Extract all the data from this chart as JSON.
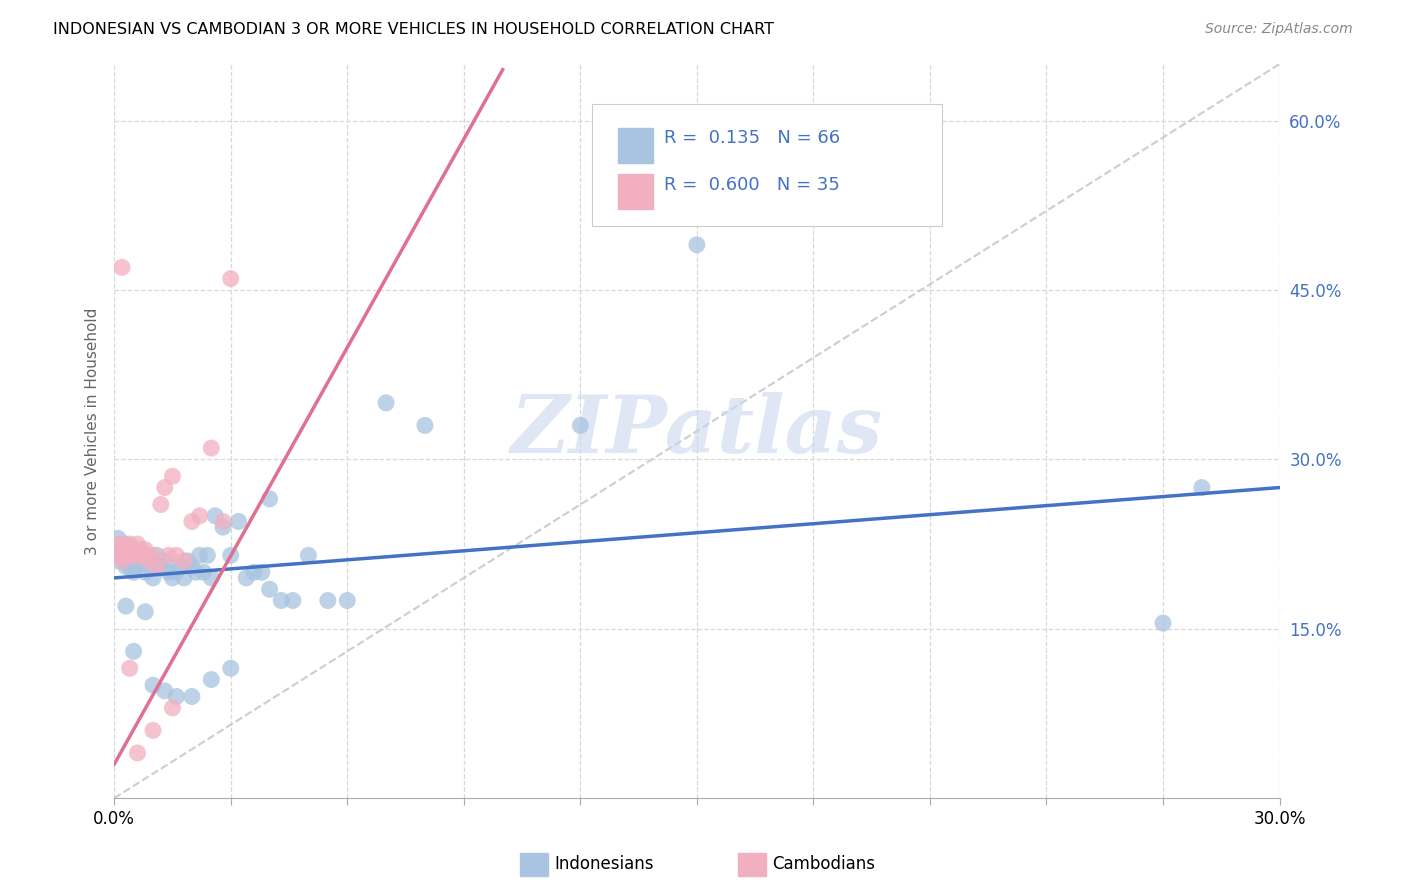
{
  "title": "INDONESIAN VS CAMBODIAN 3 OR MORE VEHICLES IN HOUSEHOLD CORRELATION CHART",
  "source": "Source: ZipAtlas.com",
  "ylabel": "3 or more Vehicles in Household",
  "xlim": [
    0.0,
    0.3
  ],
  "ylim": [
    0.0,
    0.65
  ],
  "xticks": [
    0.0,
    0.03,
    0.06,
    0.09,
    0.12,
    0.15,
    0.18,
    0.21,
    0.24,
    0.27,
    0.3
  ],
  "yticks_right": [
    0.15,
    0.3,
    0.45,
    0.6
  ],
  "ytick_labels_right": [
    "15.0%",
    "30.0%",
    "45.0%",
    "60.0%"
  ],
  "blue_scatter_color": "#a8c4e0",
  "pink_scatter_color": "#f2afc0",
  "blue_line_color": "#4472c4",
  "pink_line_color": "#e07090",
  "ref_line_color": "#c8c8c8",
  "grid_color": "#d8d8d8",
  "legend_text_color": "#4472c4",
  "legend_R_blue": "0.135",
  "legend_N_blue": "66",
  "legend_R_pink": "0.600",
  "legend_N_pink": "35",
  "watermark": "ZIPatlas",
  "blue_line_x0": 0.0,
  "blue_line_y0": 0.195,
  "blue_line_x1": 0.3,
  "blue_line_y1": 0.275,
  "pink_line_x0": 0.0,
  "pink_line_y0": 0.03,
  "pink_line_x1": 0.1,
  "pink_line_y1": 0.645,
  "ref_line_x0": 0.0,
  "ref_line_y0": 0.0,
  "ref_line_x1": 0.3,
  "ref_line_y1": 0.65,
  "indonesians_x": [
    0.001,
    0.001,
    0.002,
    0.002,
    0.003,
    0.003,
    0.003,
    0.004,
    0.004,
    0.004,
    0.005,
    0.005,
    0.005,
    0.006,
    0.006,
    0.007,
    0.007,
    0.008,
    0.008,
    0.009,
    0.01,
    0.01,
    0.011,
    0.012,
    0.013,
    0.014,
    0.015,
    0.016,
    0.017,
    0.018,
    0.019,
    0.02,
    0.021,
    0.022,
    0.023,
    0.024,
    0.025,
    0.026,
    0.028,
    0.03,
    0.032,
    0.034,
    0.036,
    0.038,
    0.04,
    0.043,
    0.046,
    0.05,
    0.055,
    0.06,
    0.003,
    0.005,
    0.008,
    0.01,
    0.013,
    0.016,
    0.02,
    0.025,
    0.03,
    0.04,
    0.07,
    0.08,
    0.12,
    0.15,
    0.27,
    0.28
  ],
  "indonesians_y": [
    0.23,
    0.21,
    0.22,
    0.215,
    0.205,
    0.21,
    0.225,
    0.215,
    0.205,
    0.22,
    0.215,
    0.21,
    0.2,
    0.215,
    0.205,
    0.21,
    0.215,
    0.2,
    0.215,
    0.205,
    0.195,
    0.21,
    0.215,
    0.205,
    0.21,
    0.2,
    0.195,
    0.2,
    0.205,
    0.195,
    0.21,
    0.205,
    0.2,
    0.215,
    0.2,
    0.215,
    0.195,
    0.25,
    0.24,
    0.215,
    0.245,
    0.195,
    0.2,
    0.2,
    0.185,
    0.175,
    0.175,
    0.215,
    0.175,
    0.175,
    0.17,
    0.13,
    0.165,
    0.1,
    0.095,
    0.09,
    0.09,
    0.105,
    0.115,
    0.265,
    0.35,
    0.33,
    0.33,
    0.49,
    0.155,
    0.275
  ],
  "cambodians_x": [
    0.001,
    0.001,
    0.002,
    0.002,
    0.003,
    0.003,
    0.004,
    0.004,
    0.005,
    0.005,
    0.006,
    0.006,
    0.007,
    0.007,
    0.008,
    0.008,
    0.009,
    0.01,
    0.011,
    0.012,
    0.013,
    0.014,
    0.015,
    0.016,
    0.018,
    0.02,
    0.022,
    0.025,
    0.028,
    0.03,
    0.002,
    0.004,
    0.006,
    0.01,
    0.015
  ],
  "cambodians_y": [
    0.225,
    0.215,
    0.225,
    0.21,
    0.215,
    0.22,
    0.215,
    0.225,
    0.22,
    0.215,
    0.215,
    0.225,
    0.215,
    0.22,
    0.215,
    0.22,
    0.21,
    0.215,
    0.205,
    0.26,
    0.275,
    0.215,
    0.285,
    0.215,
    0.21,
    0.245,
    0.25,
    0.31,
    0.245,
    0.46,
    0.47,
    0.115,
    0.04,
    0.06,
    0.08
  ]
}
